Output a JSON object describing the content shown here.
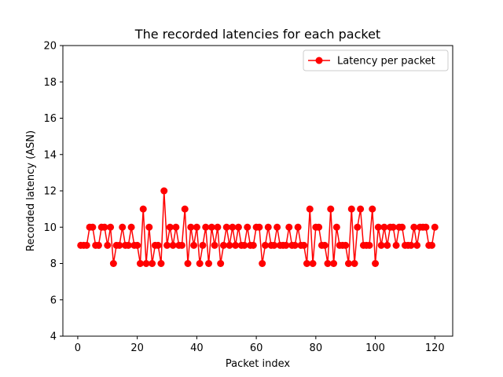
{
  "chart_data": {
    "type": "line",
    "title": "The recorded latencies for each packet",
    "xlabel": "Packet index",
    "ylabel": "Recorded latency (ASN)",
    "xlim": [
      -5,
      126
    ],
    "ylim": [
      4,
      20
    ],
    "xticks": [
      0,
      20,
      40,
      60,
      80,
      100,
      120
    ],
    "yticks": [
      4,
      6,
      8,
      10,
      12,
      14,
      16,
      18,
      20
    ],
    "grid": false,
    "legend_position": "top-right",
    "series": [
      {
        "name": "Latency per packet",
        "color": "#ff0000",
        "marker": "circle",
        "x": [
          1,
          2,
          3,
          4,
          5,
          6,
          7,
          8,
          9,
          10,
          11,
          12,
          13,
          14,
          15,
          16,
          17,
          18,
          19,
          20,
          21,
          22,
          23,
          24,
          25,
          26,
          27,
          28,
          29,
          30,
          31,
          32,
          33,
          34,
          35,
          36,
          37,
          38,
          39,
          40,
          41,
          42,
          43,
          44,
          45,
          46,
          47,
          48,
          49,
          50,
          51,
          52,
          53,
          54,
          55,
          56,
          57,
          58,
          59,
          60,
          61,
          62,
          63,
          64,
          65,
          66,
          67,
          68,
          69,
          70,
          71,
          72,
          73,
          74,
          75,
          76,
          77,
          78,
          79,
          80,
          81,
          82,
          83,
          84,
          85,
          86,
          87,
          88,
          89,
          90,
          91,
          92,
          93,
          94,
          95,
          96,
          97,
          98,
          99,
          100,
          101,
          102,
          103,
          104,
          105,
          106,
          107,
          108,
          109,
          110,
          111,
          112,
          113,
          114,
          115,
          116,
          117,
          118,
          119,
          120
        ],
        "y": [
          9,
          9,
          9,
          10,
          10,
          9,
          9,
          10,
          10,
          9,
          10,
          8,
          9,
          9,
          10,
          9,
          9,
          10,
          9,
          9,
          8,
          11,
          8,
          10,
          8,
          9,
          9,
          8,
          12,
          9,
          10,
          9,
          10,
          9,
          9,
          11,
          8,
          10,
          9,
          10,
          8,
          9,
          10,
          8,
          10,
          9,
          10,
          8,
          9,
          10,
          9,
          10,
          9,
          10,
          9,
          9,
          10,
          9,
          9,
          10,
          10,
          8,
          9,
          10,
          9,
          9,
          10,
          9,
          9,
          9,
          10,
          9,
          9,
          10,
          9,
          9,
          8,
          11,
          8,
          10,
          10,
          9,
          9,
          8,
          11,
          8,
          10,
          9,
          9,
          9,
          8,
          11,
          8,
          10,
          11,
          9,
          9,
          9,
          11,
          8,
          10,
          9,
          10,
          9,
          10,
          10,
          9,
          10,
          10,
          9,
          9,
          9,
          10,
          9,
          10,
          10,
          10,
          9,
          9,
          10
        ]
      }
    ]
  }
}
